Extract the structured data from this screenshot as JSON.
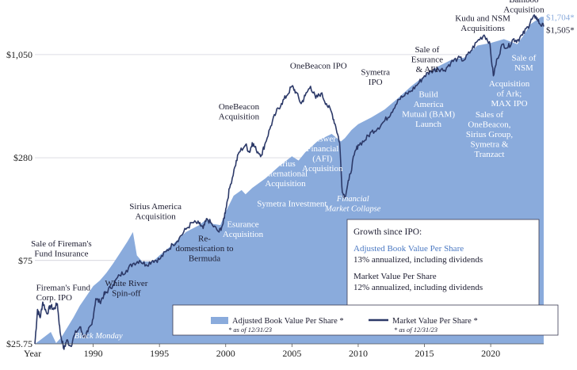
{
  "chart_data": {
    "type": "area_line",
    "y_scale": "log",
    "ylim": [
      25.75,
      1950
    ],
    "xlim": [
      1985.6,
      2024.0
    ],
    "y_ticks": [
      {
        "value": 25.75,
        "label": "$25.75"
      },
      {
        "value": 75,
        "label": "$75"
      },
      {
        "value": 280,
        "label": "$280"
      },
      {
        "value": 1050,
        "label": "$1,050"
      }
    ],
    "x_ticks": [
      {
        "value": 1985.6,
        "label": "Year"
      },
      {
        "value": 1990,
        "label": "1990"
      },
      {
        "value": 1995,
        "label": "1995"
      },
      {
        "value": 2000,
        "label": "2000"
      },
      {
        "value": 2005,
        "label": "2005"
      },
      {
        "value": 2010,
        "label": "2010"
      },
      {
        "value": 2015,
        "label": "2015"
      },
      {
        "value": 2020,
        "label": "2020"
      }
    ],
    "series": [
      {
        "name": "Adjusted Book Value Per Share *",
        "type": "area",
        "color": "#8aabdc",
        "points": [
          [
            1985.6,
            25.75
          ],
          [
            1986.0,
            27
          ],
          [
            1986.8,
            30
          ],
          [
            1987.2,
            26
          ],
          [
            1987.6,
            28
          ],
          [
            1988.5,
            36
          ],
          [
            1989.0,
            42
          ],
          [
            1990.0,
            54
          ],
          [
            1990.5,
            58
          ],
          [
            1991.0,
            64
          ],
          [
            1991.5,
            72
          ],
          [
            1992.0,
            82
          ],
          [
            1992.6,
            96
          ],
          [
            1993.0,
            108
          ],
          [
            1993.3,
            80
          ],
          [
            1993.7,
            74
          ],
          [
            1994.5,
            74
          ],
          [
            1995.0,
            80
          ],
          [
            1996.0,
            92
          ],
          [
            1997.0,
            108
          ],
          [
            1998.0,
            118
          ],
          [
            1998.6,
            128
          ],
          [
            1999.0,
            120
          ],
          [
            1999.6,
            118
          ],
          [
            2000.0,
            140
          ],
          [
            2000.6,
            172
          ],
          [
            2001.2,
            185
          ],
          [
            2001.5,
            175
          ],
          [
            2002.0,
            190
          ],
          [
            2003.0,
            215
          ],
          [
            2004.0,
            250
          ],
          [
            2005.0,
            285
          ],
          [
            2005.5,
            270
          ],
          [
            2006.0,
            300
          ],
          [
            2007.0,
            350
          ],
          [
            2008.0,
            380
          ],
          [
            2008.7,
            345
          ],
          [
            2009.0,
            360
          ],
          [
            2009.5,
            400
          ],
          [
            2010.0,
            430
          ],
          [
            2011.0,
            470
          ],
          [
            2012.0,
            520
          ],
          [
            2013.0,
            600
          ],
          [
            2014.0,
            700
          ],
          [
            2015.0,
            800
          ],
          [
            2016.0,
            900
          ],
          [
            2017.0,
            980
          ],
          [
            2018.0,
            1010
          ],
          [
            2019.0,
            1180
          ],
          [
            2020.0,
            1220
          ],
          [
            2021.0,
            1280
          ],
          [
            2022.0,
            1200
          ],
          [
            2022.5,
            1350
          ],
          [
            2023.0,
            1550
          ],
          [
            2023.8,
            1704
          ],
          [
            2024.0,
            1704
          ]
        ]
      },
      {
        "name": "Market Value Per Share *",
        "type": "line",
        "color": "#2c3968",
        "points": [
          [
            1985.6,
            25.75
          ],
          [
            1985.8,
            40
          ],
          [
            1986.0,
            36
          ],
          [
            1986.2,
            44
          ],
          [
            1986.5,
            38
          ],
          [
            1986.8,
            42
          ],
          [
            1987.0,
            40
          ],
          [
            1987.3,
            43
          ],
          [
            1987.5,
            30
          ],
          [
            1987.8,
            24
          ],
          [
            1988.0,
            27
          ],
          [
            1988.3,
            25
          ],
          [
            1988.6,
            29
          ],
          [
            1989.0,
            32
          ],
          [
            1989.3,
            28
          ],
          [
            1989.6,
            30
          ],
          [
            1989.9,
            33
          ],
          [
            1990.2,
            46
          ],
          [
            1990.5,
            44
          ],
          [
            1990.8,
            48
          ],
          [
            1991.0,
            50
          ],
          [
            1991.5,
            55
          ],
          [
            1992.0,
            62
          ],
          [
            1992.5,
            66
          ],
          [
            1993.0,
            72
          ],
          [
            1993.5,
            75
          ],
          [
            1994.0,
            71
          ],
          [
            1994.5,
            75
          ],
          [
            1995.0,
            76
          ],
          [
            1995.5,
            84
          ],
          [
            1996.0,
            92
          ],
          [
            1996.5,
            100
          ],
          [
            1997.0,
            112
          ],
          [
            1997.5,
            122
          ],
          [
            1998.0,
            120
          ],
          [
            1998.3,
            113
          ],
          [
            1998.6,
            128
          ],
          [
            1999.0,
            118
          ],
          [
            1999.5,
            108
          ],
          [
            1999.8,
            120
          ],
          [
            2000.0,
            145
          ],
          [
            2000.3,
            190
          ],
          [
            2000.7,
            250
          ],
          [
            2001.0,
            300
          ],
          [
            2001.5,
            330
          ],
          [
            2001.8,
            300
          ],
          [
            2002.0,
            340
          ],
          [
            2002.3,
            310
          ],
          [
            2002.7,
            290
          ],
          [
            2003.0,
            340
          ],
          [
            2003.4,
            420
          ],
          [
            2003.8,
            500
          ],
          [
            2004.2,
            560
          ],
          [
            2004.6,
            620
          ],
          [
            2005.0,
            700
          ],
          [
            2005.3,
            650
          ],
          [
            2005.7,
            560
          ],
          [
            2006.0,
            620
          ],
          [
            2006.4,
            700
          ],
          [
            2006.8,
            600
          ],
          [
            2007.2,
            640
          ],
          [
            2007.6,
            560
          ],
          [
            2008.0,
            500
          ],
          [
            2008.3,
            420
          ],
          [
            2008.6,
            340
          ],
          [
            2008.8,
            180
          ],
          [
            2009.0,
            170
          ],
          [
            2009.3,
            210
          ],
          [
            2009.7,
            290
          ],
          [
            2010.0,
            330
          ],
          [
            2010.5,
            350
          ],
          [
            2011.0,
            390
          ],
          [
            2011.5,
            410
          ],
          [
            2012.0,
            450
          ],
          [
            2012.5,
            500
          ],
          [
            2013.0,
            590
          ],
          [
            2013.5,
            620
          ],
          [
            2014.0,
            660
          ],
          [
            2014.5,
            720
          ],
          [
            2015.0,
            800
          ],
          [
            2015.5,
            850
          ],
          [
            2016.0,
            880
          ],
          [
            2016.5,
            860
          ],
          [
            2017.0,
            950
          ],
          [
            2017.5,
            1000
          ],
          [
            2018.0,
            980
          ],
          [
            2018.5,
            1100
          ],
          [
            2019.0,
            1250
          ],
          [
            2019.5,
            1350
          ],
          [
            2019.9,
            1240
          ],
          [
            2020.2,
            800
          ],
          [
            2020.5,
            1000
          ],
          [
            2020.9,
            1200
          ],
          [
            2021.3,
            1150
          ],
          [
            2021.7,
            1280
          ],
          [
            2022.0,
            1260
          ],
          [
            2022.4,
            1350
          ],
          [
            2022.8,
            1500
          ],
          [
            2023.1,
            1650
          ],
          [
            2023.4,
            1720
          ],
          [
            2023.7,
            1560
          ],
          [
            2024.0,
            1505
          ]
        ]
      }
    ],
    "end_labels": {
      "book": {
        "text": "$1,704*",
        "color": "#8aabdc"
      },
      "market": {
        "text": "$1,505*",
        "color": "#1c1c30"
      }
    },
    "annotations": [
      {
        "lines": [
          "Fireman's Fund",
          "Corp. IPO"
        ],
        "x": 1985.7,
        "y": 51,
        "anchor": "start",
        "style": "dark"
      },
      {
        "lines": [
          "Sale of Fireman's",
          "Fund Insurance"
        ],
        "x": 1987.6,
        "y": 90,
        "anchor": "middle",
        "style": "dark"
      },
      {
        "lines": [
          "White River",
          "Spin-off"
        ],
        "x": 1992.5,
        "y": 54,
        "anchor": "middle",
        "style": "dark"
      },
      {
        "lines": [
          "Black Monday"
        ],
        "x": 1990.4,
        "y": 27.6,
        "anchor": "middle",
        "style": "italic"
      },
      {
        "lines": [
          "Sirius America",
          "Acquisition"
        ],
        "x": 1994.7,
        "y": 145,
        "anchor": "middle",
        "style": "dark"
      },
      {
        "lines": [
          "Re-",
          "domestication to",
          "Bermuda"
        ],
        "x": 1998.4,
        "y": 96,
        "anchor": "middle",
        "style": "dark"
      },
      {
        "lines": [
          "Esurance",
          "Acquisition"
        ],
        "x": 2001.3,
        "y": 115,
        "anchor": "middle",
        "style": "light"
      },
      {
        "lines": [
          "OneBeacon",
          "Acquisition"
        ],
        "x": 2001.0,
        "y": 520,
        "anchor": "middle",
        "style": "dark"
      },
      {
        "lines": [
          "Sirius",
          "International",
          "Acquisition"
        ],
        "x": 2004.5,
        "y": 250,
        "anchor": "middle",
        "style": "light"
      },
      {
        "lines": [
          "Symetra Investment"
        ],
        "x": 2005.0,
        "y": 150,
        "anchor": "middle",
        "style": "light"
      },
      {
        "lines": [
          "OneBeacon IPO"
        ],
        "x": 2007.0,
        "y": 880,
        "anchor": "middle",
        "style": "dark"
      },
      {
        "lines": [
          "Answer",
          "Financial",
          "(AFI)",
          "Acquisition"
        ],
        "x": 2007.3,
        "y": 345,
        "anchor": "middle",
        "style": "light"
      },
      {
        "lines": [
          "Financial",
          "Market Collapse"
        ],
        "x": 2009.6,
        "y": 160,
        "anchor": "middle",
        "style": "italic"
      },
      {
        "lines": [
          "Symetra",
          "IPO"
        ],
        "x": 2011.3,
        "y": 810,
        "anchor": "middle",
        "style": "dark"
      },
      {
        "lines": [
          "Sale of",
          "Esurance",
          "& AFI"
        ],
        "x": 2015.2,
        "y": 1080,
        "anchor": "middle",
        "style": "dark"
      },
      {
        "lines": [
          "Build",
          "America",
          "Mutual (BAM)",
          "Launch"
        ],
        "x": 2015.3,
        "y": 610,
        "anchor": "middle",
        "style": "light"
      },
      {
        "lines": [
          "Kudu and NSM",
          "Acquisitions"
        ],
        "x": 2019.4,
        "y": 1620,
        "anchor": "middle",
        "style": "dark"
      },
      {
        "lines": [
          "Bamboo",
          "Acquisition"
        ],
        "x": 2022.5,
        "y": 2050,
        "anchor": "middle",
        "style": "dark"
      },
      {
        "lines": [
          "Sale of",
          "NSM"
        ],
        "x": 2022.5,
        "y": 970,
        "anchor": "middle",
        "style": "light"
      },
      {
        "lines": [
          "Acquisition",
          "of Ark;",
          "MAX IPO"
        ],
        "x": 2021.4,
        "y": 700,
        "anchor": "middle",
        "style": "light"
      },
      {
        "lines": [
          "Sales of",
          "OneBeacon,",
          "Sirius Group,",
          "Symetra &",
          "Tranzact"
        ],
        "x": 2019.9,
        "y": 470,
        "anchor": "middle",
        "style": "light"
      }
    ],
    "growth_box": {
      "title": "Growth since IPO:",
      "book": {
        "name": "Adjusted Book Value Per Share",
        "value": "13% annualized, including dividends"
      },
      "market": {
        "name": "Market Value Per Share",
        "value": "12% annualized, including dividends"
      }
    },
    "legend": {
      "book": {
        "label": "Adjusted Book Value Per Share *",
        "note": "* as of 12/31/23"
      },
      "market": {
        "label": "Market Value Per Share *",
        "note": "* as of 12/31/23"
      }
    }
  }
}
